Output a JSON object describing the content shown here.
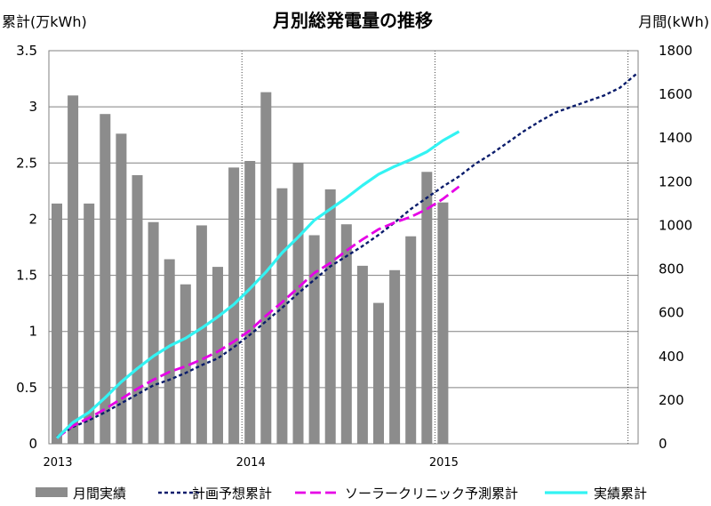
{
  "chart_data": {
    "type": "bar+line",
    "title": "月別総発電量の推移",
    "ylabel_left": "累計(万kWh)",
    "ylabel_right": "月間(kWh)",
    "ylim_left": [
      0,
      3.5
    ],
    "ylim_right": [
      0,
      1800
    ],
    "yticks_left": [
      "0",
      "0.5",
      "1",
      "1.5",
      "2",
      "2.5",
      "3",
      "3.5"
    ],
    "yticks_right": [
      "0",
      "200",
      "400",
      "600",
      "800",
      "1000",
      "1200",
      "1400",
      "1600",
      "1800"
    ],
    "x_tick_labels": [
      "2013",
      "2014",
      "2015"
    ],
    "grid": true,
    "legend_position": "bottom",
    "bars": {
      "name": "月間実績",
      "color": "#8c8c8c",
      "axis": "right",
      "values": [
        1100,
        1595,
        1100,
        1510,
        1420,
        1230,
        1015,
        845,
        730,
        1000,
        810,
        1265,
        1295,
        1610,
        1170,
        1285,
        955,
        1165,
        1005,
        815,
        645,
        795,
        950,
        1245,
        1105
      ]
    },
    "series": [
      {
        "name": "計画予想累計",
        "color": "#0a1c6b",
        "style": "short-dash",
        "axis": "left",
        "points": [
          [
            0,
            0.06
          ],
          [
            1,
            0.15
          ],
          [
            2,
            0.21
          ],
          [
            3,
            0.28
          ],
          [
            4,
            0.36
          ],
          [
            5,
            0.44
          ],
          [
            6,
            0.52
          ],
          [
            7,
            0.57
          ],
          [
            8,
            0.63
          ],
          [
            9,
            0.7
          ],
          [
            10,
            0.76
          ],
          [
            11,
            0.86
          ],
          [
            12,
            0.97
          ],
          [
            13,
            1.09
          ],
          [
            14,
            1.21
          ],
          [
            15,
            1.34
          ],
          [
            16,
            1.46
          ],
          [
            17,
            1.58
          ],
          [
            18,
            1.67
          ],
          [
            19,
            1.76
          ],
          [
            20,
            1.86
          ],
          [
            21,
            1.97
          ],
          [
            22,
            2.09
          ],
          [
            23,
            2.19
          ],
          [
            24,
            2.29
          ],
          [
            25,
            2.38
          ],
          [
            26,
            2.49
          ],
          [
            27,
            2.58
          ],
          [
            28,
            2.68
          ],
          [
            29,
            2.78
          ],
          [
            30,
            2.87
          ],
          [
            31,
            2.95
          ],
          [
            32,
            3.0
          ],
          [
            33,
            3.05
          ],
          [
            34,
            3.1
          ],
          [
            35,
            3.17
          ],
          [
            36,
            3.29
          ]
        ]
      },
      {
        "name": "ソーラークリニック予測累計",
        "color": "#e600e6",
        "style": "long-dash",
        "axis": "left",
        "points": [
          [
            0,
            0.05
          ],
          [
            1,
            0.16
          ],
          [
            2,
            0.23
          ],
          [
            3,
            0.31
          ],
          [
            4,
            0.4
          ],
          [
            5,
            0.49
          ],
          [
            6,
            0.57
          ],
          [
            7,
            0.64
          ],
          [
            8,
            0.69
          ],
          [
            9,
            0.75
          ],
          [
            10,
            0.82
          ],
          [
            11,
            0.91
          ],
          [
            12,
            1.01
          ],
          [
            13,
            1.14
          ],
          [
            14,
            1.26
          ],
          [
            15,
            1.39
          ],
          [
            16,
            1.52
          ],
          [
            17,
            1.61
          ],
          [
            18,
            1.72
          ],
          [
            19,
            1.82
          ],
          [
            20,
            1.91
          ],
          [
            21,
            1.97
          ],
          [
            22,
            2.02
          ],
          [
            23,
            2.09
          ],
          [
            24,
            2.18
          ],
          [
            25,
            2.29
          ]
        ]
      },
      {
        "name": "実績累計",
        "color": "#33f3f3",
        "style": "solid",
        "axis": "left",
        "points": [
          [
            0,
            0.05
          ],
          [
            1,
            0.19
          ],
          [
            2,
            0.28
          ],
          [
            3,
            0.41
          ],
          [
            4,
            0.55
          ],
          [
            5,
            0.67
          ],
          [
            6,
            0.78
          ],
          [
            7,
            0.87
          ],
          [
            8,
            0.94
          ],
          [
            9,
            1.03
          ],
          [
            10,
            1.13
          ],
          [
            11,
            1.24
          ],
          [
            12,
            1.38
          ],
          [
            13,
            1.53
          ],
          [
            14,
            1.7
          ],
          [
            15,
            1.84
          ],
          [
            16,
            1.99
          ],
          [
            17,
            2.09
          ],
          [
            18,
            2.19
          ],
          [
            19,
            2.3
          ],
          [
            20,
            2.4
          ],
          [
            21,
            2.47
          ],
          [
            22,
            2.53
          ],
          [
            23,
            2.6
          ],
          [
            24,
            2.7
          ],
          [
            25,
            2.78
          ]
        ]
      }
    ]
  }
}
